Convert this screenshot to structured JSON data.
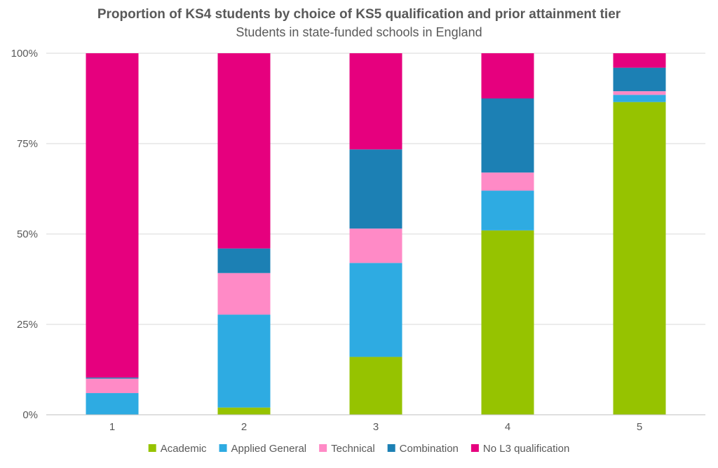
{
  "chart_data": {
    "type": "bar",
    "stacked": true,
    "title": "Proportion of KS4 students by choice of KS5 qualification and prior attainment tier",
    "subtitle": "Students in state-funded schools in England",
    "xlabel": "",
    "ylabel": "",
    "categories": [
      "1",
      "2",
      "3",
      "4",
      "5"
    ],
    "ylim": [
      0,
      100
    ],
    "y_ticks": [
      0,
      25,
      50,
      75,
      100
    ],
    "y_tick_labels": [
      "0%",
      "25%",
      "50%",
      "75%",
      "100%"
    ],
    "grid": true,
    "legend_position": "bottom",
    "series": [
      {
        "name": "Academic",
        "color": "#96C300",
        "values": [
          0,
          2,
          16,
          51,
          86.5
        ]
      },
      {
        "name": "Applied General",
        "color": "#2EABE2",
        "values": [
          6,
          25.7,
          26,
          11,
          2
        ]
      },
      {
        "name": "Technical",
        "color": "#FF8AC6",
        "values": [
          4,
          11.5,
          9.5,
          5,
          1
        ]
      },
      {
        "name": "Combination",
        "color": "#1C80B4",
        "values": [
          0.3,
          6.8,
          21.9,
          20.5,
          6.5
        ]
      },
      {
        "name": "No L3 qualification",
        "color": "#E6007E",
        "values": [
          89.7,
          54,
          26.6,
          12.5,
          4
        ]
      }
    ]
  }
}
